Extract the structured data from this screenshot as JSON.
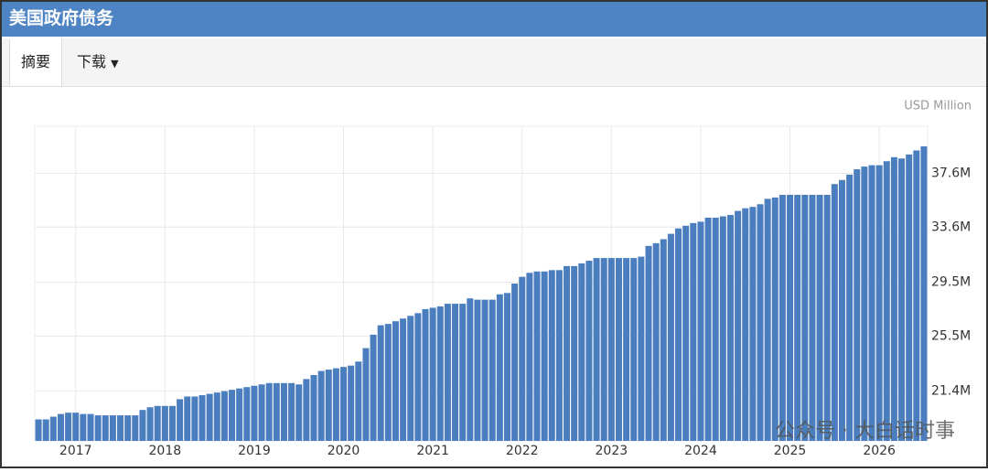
{
  "header": {
    "title": "美国政府债务"
  },
  "tabs": [
    "摘要",
    "下载"
  ],
  "watermark": "公众号 · 大白话时事",
  "chart_data": {
    "type": "bar",
    "unit": "USD Million",
    "color": "#4a7ebf",
    "grid": true,
    "categories": [
      null,
      null,
      null,
      null,
      null,
      "2017",
      null,
      null,
      null,
      null,
      null,
      null,
      null,
      null,
      null,
      null,
      null,
      "2018",
      null,
      null,
      null,
      null,
      null,
      null,
      null,
      null,
      null,
      null,
      null,
      "2019",
      null,
      null,
      null,
      null,
      null,
      null,
      null,
      null,
      null,
      null,
      null,
      "2020",
      null,
      null,
      null,
      null,
      null,
      null,
      null,
      null,
      null,
      null,
      null,
      "2021",
      null,
      null,
      null,
      null,
      null,
      null,
      null,
      null,
      null,
      null,
      null,
      "2022",
      null,
      null,
      null,
      null,
      null,
      null,
      null,
      null,
      null,
      null,
      null,
      "2023",
      null,
      null,
      null,
      null,
      null,
      null,
      null,
      null,
      null,
      null,
      null,
      "2024",
      null,
      null,
      null,
      null,
      null,
      null,
      null,
      null,
      null,
      null,
      null,
      "2025",
      null,
      null,
      null,
      null,
      null,
      null,
      null,
      null,
      null,
      null,
      null,
      "2026",
      null,
      null,
      null,
      null,
      null,
      null
    ],
    "values": [
      19.3,
      19.3,
      19.5,
      19.7,
      19.8,
      19.8,
      19.7,
      19.7,
      19.6,
      19.6,
      19.6,
      19.6,
      19.6,
      19.6,
      20.0,
      20.2,
      20.3,
      20.3,
      20.3,
      20.8,
      21.0,
      21.0,
      21.1,
      21.2,
      21.3,
      21.4,
      21.5,
      21.6,
      21.7,
      21.8,
      21.9,
      22.0,
      22.0,
      22.0,
      22.0,
      21.9,
      22.3,
      22.6,
      22.9,
      23.0,
      23.1,
      23.2,
      23.3,
      23.6,
      24.6,
      25.6,
      26.3,
      26.4,
      26.6,
      26.8,
      27.0,
      27.2,
      27.5,
      27.6,
      27.7,
      27.9,
      27.9,
      27.9,
      28.3,
      28.2,
      28.2,
      28.2,
      28.6,
      28.7,
      29.4,
      29.9,
      30.2,
      30.3,
      30.3,
      30.4,
      30.4,
      30.7,
      30.7,
      30.9,
      31.1,
      31.3,
      31.3,
      31.3,
      31.3,
      31.3,
      31.3,
      31.4,
      32.2,
      32.4,
      32.7,
      33.1,
      33.5,
      33.7,
      33.9,
      34.0,
      34.3,
      34.3,
      34.4,
      34.5,
      34.8,
      35.0,
      35.1,
      35.3,
      35.7,
      35.8,
      36.0,
      36.0,
      36.0,
      36.0,
      36.0,
      36.0,
      36.0,
      36.8,
      37.1,
      37.5,
      37.9,
      38.1,
      38.2,
      38.2,
      38.5,
      38.8,
      38.7,
      39.0,
      39.3,
      39.6
    ],
    "ylim": [
      17.7,
      41.1
    ],
    "yticks": [
      {
        "value": 21.4,
        "label": "21.4M"
      },
      {
        "value": 25.5,
        "label": "25.5M"
      },
      {
        "value": 29.5,
        "label": "29.5M"
      },
      {
        "value": 33.6,
        "label": "33.6M"
      },
      {
        "value": 37.6,
        "label": "37.6M"
      }
    ]
  }
}
